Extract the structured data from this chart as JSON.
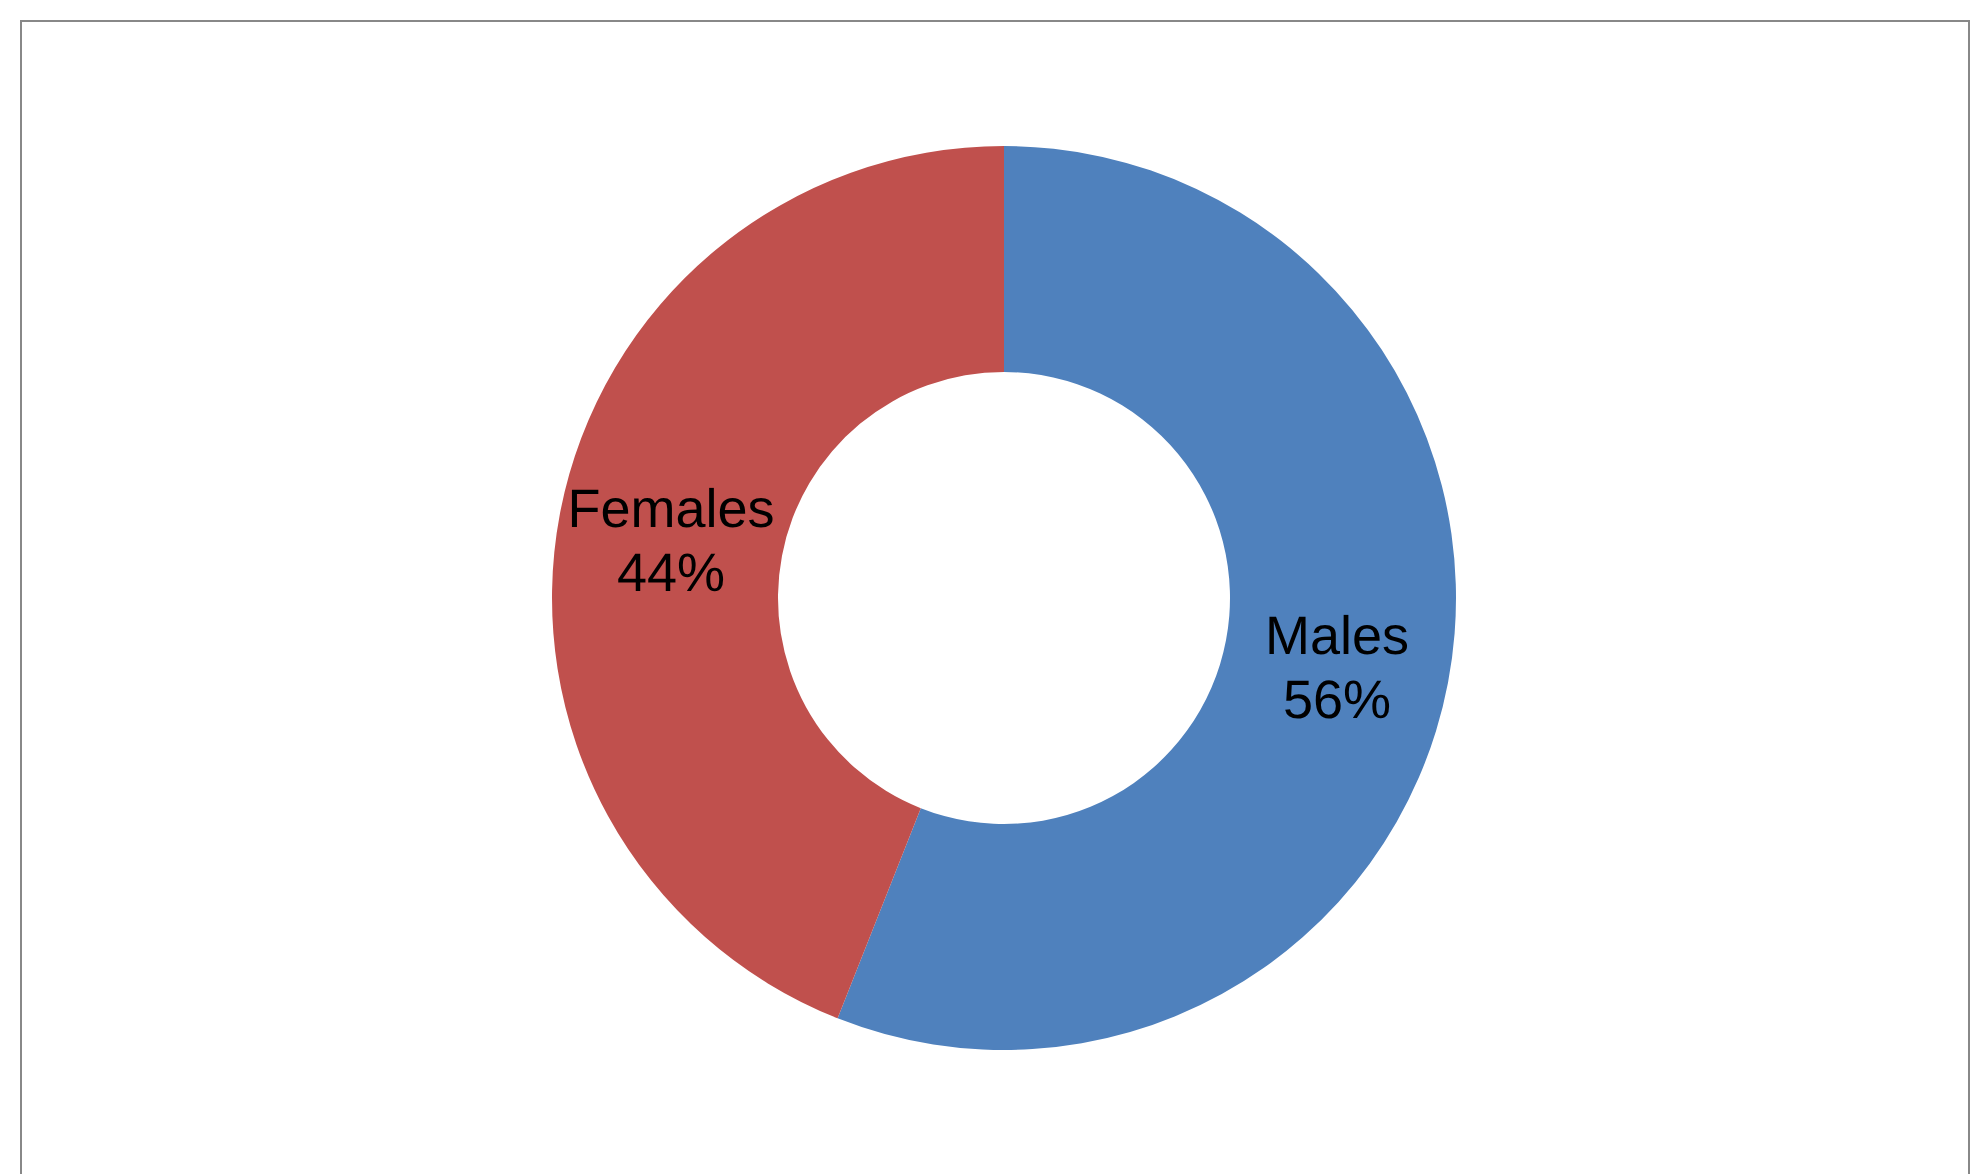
{
  "chart_data": {
    "type": "donut",
    "categories": [
      "Males",
      "Females"
    ],
    "values": [
      56,
      44
    ],
    "colors": [
      "#4f81bd",
      "#c0504d"
    ],
    "value_labels": [
      "56%",
      "44%"
    ]
  }
}
